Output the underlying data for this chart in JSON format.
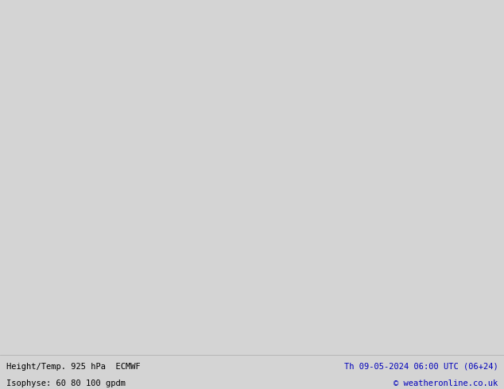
{
  "title_left": "Height/Temp. 925 hPa  ECMWF",
  "title_left2": "Isophyse: 60 80 100 gpdm",
  "title_right": "Th 09-05-2024 06:00 UTC (06+24)",
  "title_right2": "© weatheronline.co.uk",
  "bg_color": "#d4d4d4",
  "land_color": "#c8f0a0",
  "sea_color": "#d4d4d4",
  "border_color": "#999999",
  "fig_width": 6.34,
  "fig_height": 4.9,
  "dpi": 100,
  "text_color_left": "#000000",
  "text_color_right": "#0000bb",
  "footer_bg": "#d8d8d8",
  "map_extent": [
    -12.5,
    8.5,
    48.0,
    62.5
  ],
  "line_colors": [
    "#888888",
    "#888888",
    "#888888",
    "#888888",
    "#888888",
    "#aa00aa",
    "#ff0000",
    "#ff8800",
    "#dddd00",
    "#00bb00",
    "#00cccc",
    "#0055ff",
    "#8800ff",
    "#ff44aa",
    "#ff00ff"
  ],
  "contour_label_color_gray": "#666666",
  "contour_label_color_cyan": "#00aaaa",
  "contour_label_color_orange": "#ff8800",
  "contour_label_color_blue": "#0055ff",
  "contour_label_color_purple": "#8800cc"
}
